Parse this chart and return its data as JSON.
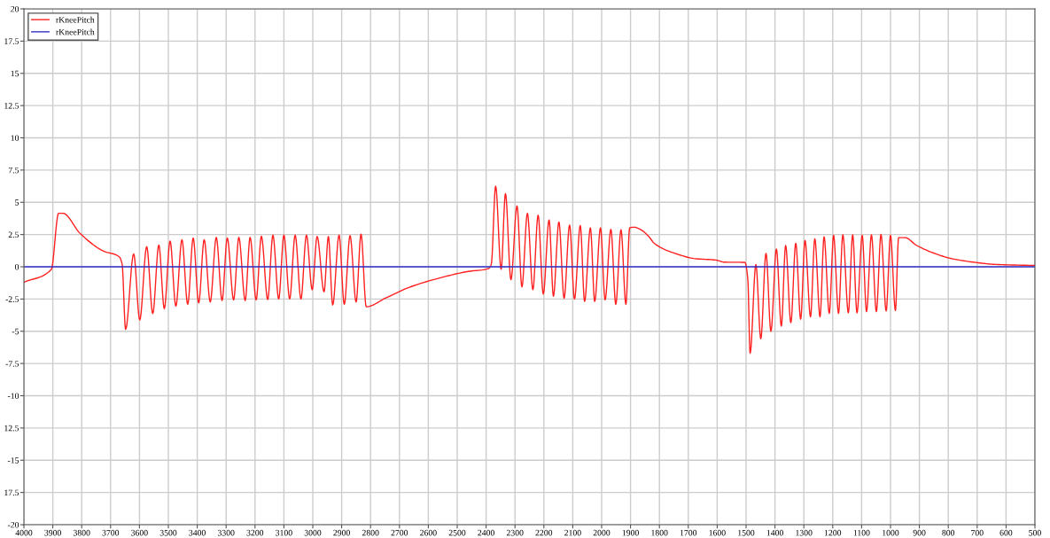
{
  "chart_data": {
    "type": "line",
    "series": [
      {
        "name": "rKneePitch",
        "color": "#ff2020",
        "x": [
          4000,
          3905,
          3880,
          3865,
          3805,
          3725,
          3670,
          3660,
          3648,
          3620,
          3599,
          3575,
          3554,
          3533,
          3514,
          3494,
          3474,
          3453,
          3433,
          3414,
          3395,
          3376,
          3355,
          3334,
          3314,
          3296,
          3274,
          3256,
          3234,
          3217,
          3196,
          3178,
          3156,
          3138,
          3118,
          3100,
          3080,
          3061,
          3041,
          3022,
          3002,
          2985,
          2961,
          2946,
          2931,
          2909,
          2891,
          2871,
          2850,
          2833,
          2815,
          2745,
          2667,
          2563,
          2462,
          2392,
          2382,
          2367,
          2348,
          2333,
          2314,
          2293,
          2276,
          2257,
          2238,
          2220,
          2202,
          2182,
          2167,
          2148,
          2130,
          2111,
          2094,
          2074,
          2059,
          2039,
          2024,
          2004,
          1988,
          1968,
          1951,
          1933,
          1916,
          1903,
          1888,
          1867,
          1837,
          1817,
          1746,
          1676,
          1605,
          1575,
          1504,
          1494,
          1486,
          1466,
          1449,
          1431,
          1414,
          1395,
          1378,
          1363,
          1345,
          1328,
          1311,
          1296,
          1277,
          1262,
          1244,
          1230,
          1212,
          1197,
          1180,
          1165,
          1146,
          1131,
          1116,
          1098,
          1083,
          1066,
          1049,
          1033,
          1015,
          1000,
          983,
          972,
          950,
          909,
          839,
          788,
          688,
          637,
          500
        ],
        "values": [
          -1.2,
          -0.2,
          4.15,
          4.15,
          2.57,
          1.22,
          0.77,
          0.2,
          -4.85,
          1.0,
          -4.13,
          1.56,
          -3.63,
          1.69,
          -3.25,
          2.0,
          -3.05,
          2.1,
          -2.91,
          2.23,
          -2.8,
          2.1,
          -2.73,
          2.28,
          -2.62,
          2.23,
          -2.57,
          2.28,
          -2.62,
          2.28,
          -2.57,
          2.37,
          -2.55,
          2.46,
          -2.5,
          2.46,
          -2.5,
          2.46,
          -2.5,
          2.46,
          -1.78,
          2.35,
          -1.94,
          2.35,
          -2.96,
          2.46,
          -2.91,
          2.42,
          -2.73,
          2.53,
          -3.1,
          -2.39,
          -1.6,
          -0.88,
          -0.36,
          -0.14,
          0.2,
          6.25,
          -0.2,
          5.67,
          -1.0,
          4.72,
          -1.56,
          4.15,
          -1.78,
          4.0,
          -2.12,
          3.63,
          -2.28,
          3.48,
          -2.44,
          3.23,
          -2.5,
          3.2,
          -2.69,
          3.02,
          -2.69,
          3.02,
          -2.57,
          2.91,
          -2.91,
          2.87,
          -2.91,
          3.02,
          3.07,
          2.91,
          2.35,
          1.8,
          1.04,
          0.63,
          0.52,
          0.36,
          0.34,
          -0.95,
          -6.7,
          0.18,
          -5.58,
          1.04,
          -5.0,
          1.38,
          -4.6,
          1.65,
          -4.33,
          1.83,
          -4.06,
          2.05,
          -3.88,
          2.17,
          -3.88,
          2.33,
          -3.61,
          2.44,
          -3.61,
          2.48,
          -3.57,
          2.48,
          -3.57,
          2.44,
          -3.48,
          2.48,
          -3.48,
          2.51,
          -3.43,
          2.44,
          -3.39,
          2.26,
          2.26,
          1.65,
          0.97,
          0.63,
          0.29,
          0.18,
          0.1
        ]
      },
      {
        "name": "rKneePitch",
        "color": "#3030c8",
        "x": [
          4000,
          500
        ],
        "values": [
          0,
          0
        ]
      }
    ],
    "xlim": [
      4000,
      500
    ],
    "xticks": [
      4000,
      3900,
      3800,
      3700,
      3600,
      3500,
      3400,
      3300,
      3200,
      3100,
      3000,
      2900,
      2800,
      2700,
      2600,
      2500,
      2400,
      2300,
      2200,
      2100,
      2000,
      1900,
      1800,
      1700,
      1600,
      1500,
      1400,
      1300,
      1200,
      1100,
      1000,
      900,
      800,
      700,
      600,
      500
    ],
    "ylim": [
      -20,
      20
    ],
    "yticks": [
      20,
      17.5,
      15,
      12.5,
      10,
      7.5,
      5,
      2.5,
      0,
      -2.5,
      -5,
      -7.5,
      -10,
      {
        "value": -12.5,
        "label": "12.5"
      },
      -15,
      {
        "value": -17.5,
        "label": "17.5"
      },
      -20
    ],
    "grid": true,
    "legend": "top left",
    "line_style": "solid",
    "marker": "none"
  }
}
